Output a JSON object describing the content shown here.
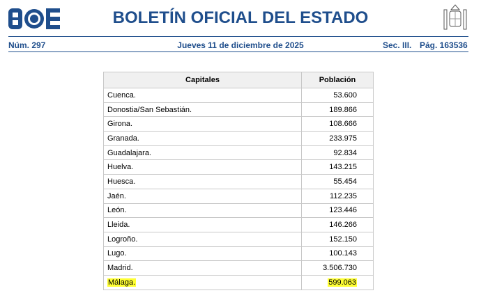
{
  "header": {
    "title": "BOLETÍN OFICIAL DEL ESTADO",
    "number": "Núm. 297",
    "date": "Jueves 11 de diciembre de 2025",
    "section": "Sec. III.",
    "page": "Pág. 163536"
  },
  "table": {
    "columns": [
      "Capitales",
      "Población"
    ],
    "rows": [
      [
        "Cuenca.",
        "53.600"
      ],
      [
        "Donostia/San Sebastián.",
        "189.866"
      ],
      [
        "Girona.",
        "108.666"
      ],
      [
        "Granada.",
        "233.975"
      ],
      [
        "Guadalajara.",
        "92.834"
      ],
      [
        "Huelva.",
        "143.215"
      ],
      [
        "Huesca.",
        "55.454"
      ],
      [
        "Jaén.",
        "112.235"
      ],
      [
        "León.",
        "123.446"
      ],
      [
        "Lleida.",
        "146.266"
      ],
      [
        "Logroño.",
        "152.150"
      ],
      [
        "Lugo.",
        "100.143"
      ],
      [
        "Madrid.",
        "3.506.730"
      ],
      [
        "Málaga.",
        "599.063"
      ]
    ],
    "highlighted_row": 13
  }
}
